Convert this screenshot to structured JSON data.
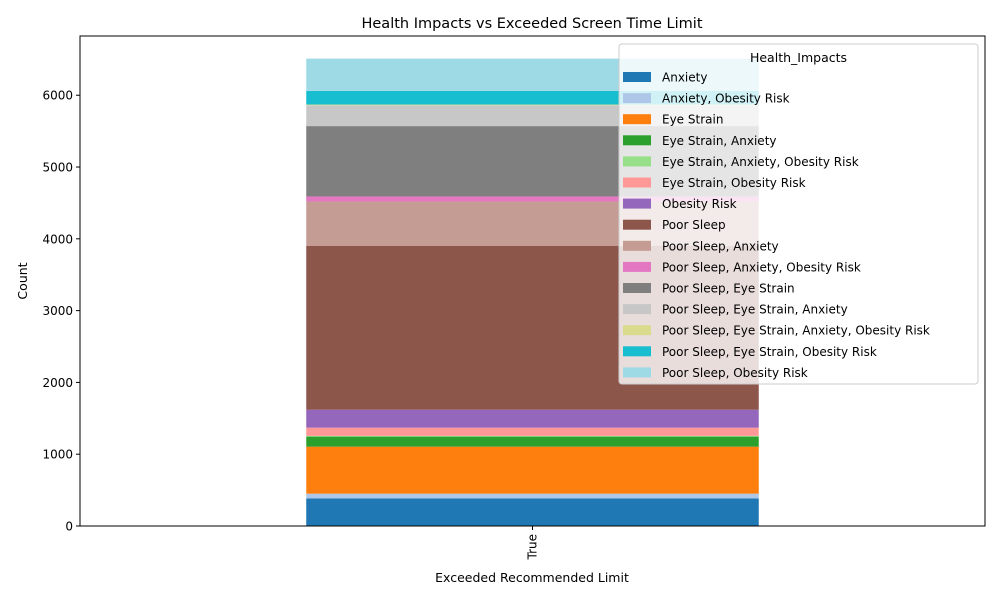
{
  "chart_data": {
    "type": "bar",
    "stacked": true,
    "title": "Health Impacts vs Exceeded Screen Time Limit",
    "xlabel": "Exceeded Recommended Limit",
    "ylabel": "Count",
    "categories": [
      "True"
    ],
    "ylim": [
      0,
      6825
    ],
    "yticks": [
      0,
      1000,
      2000,
      3000,
      4000,
      5000,
      6000
    ],
    "legend_title": "Health_Impacts",
    "legend_position": "top-right",
    "grid": false,
    "series": [
      {
        "name": "Anxiety",
        "color": "#1f77b4",
        "values": [
          385
        ]
      },
      {
        "name": "Anxiety, Obesity Risk",
        "color": "#aec7e8",
        "values": [
          65
        ]
      },
      {
        "name": "Eye Strain",
        "color": "#ff7f0e",
        "values": [
          655
        ]
      },
      {
        "name": "Eye Strain, Anxiety",
        "color": "#2ca02c",
        "values": [
          140
        ]
      },
      {
        "name": "Eye Strain, Anxiety, Obesity Risk",
        "color": "#98df8a",
        "values": [
          10
        ]
      },
      {
        "name": "Eye Strain, Obesity Risk",
        "color": "#ff9896",
        "values": [
          115
        ]
      },
      {
        "name": "Obesity Risk",
        "color": "#9467bd",
        "values": [
          250
        ]
      },
      {
        "name": "Poor Sleep",
        "color": "#8c564b",
        "values": [
          2280
        ]
      },
      {
        "name": "Poor Sleep, Anxiety",
        "color": "#c49c94",
        "values": [
          620
        ]
      },
      {
        "name": "Poor Sleep, Anxiety, Obesity Risk",
        "color": "#e377c2",
        "values": [
          70
        ]
      },
      {
        "name": "Poor Sleep, Eye Strain",
        "color": "#7f7f7f",
        "values": [
          980
        ]
      },
      {
        "name": "Poor Sleep, Eye Strain, Anxiety",
        "color": "#c7c7c7",
        "values": [
          290
        ]
      },
      {
        "name": "Poor Sleep, Eye Strain, Anxiety, Obesity Risk",
        "color": "#dbdb8d",
        "values": [
          10
        ]
      },
      {
        "name": "Poor Sleep, Eye Strain, Obesity Risk",
        "color": "#17becf",
        "values": [
          190
        ]
      },
      {
        "name": "Poor Sleep, Obesity Risk",
        "color": "#9edae5",
        "values": [
          450
        ]
      }
    ]
  }
}
